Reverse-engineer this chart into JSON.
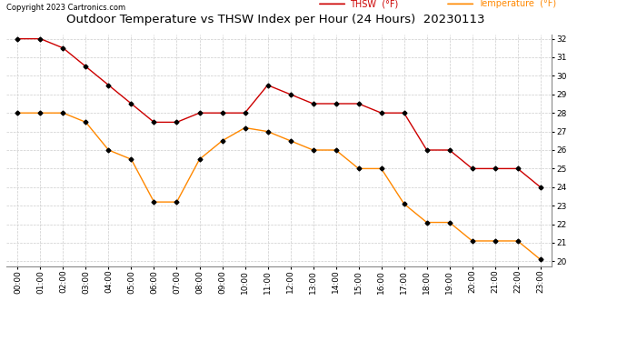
{
  "title": "Outdoor Temperature vs THSW Index per Hour (24 Hours)  20230113",
  "copyright": "Copyright 2023 Cartronics.com",
  "legend_thsw": "THSW  (°F)",
  "legend_temp": "Temperature  (°F)",
  "hours": [
    "00:00",
    "01:00",
    "02:00",
    "03:00",
    "04:00",
    "05:00",
    "06:00",
    "07:00",
    "08:00",
    "09:00",
    "10:00",
    "11:00",
    "12:00",
    "13:00",
    "14:00",
    "15:00",
    "16:00",
    "17:00",
    "18:00",
    "19:00",
    "20:00",
    "21:00",
    "22:00",
    "23:00"
  ],
  "thsw": [
    32.0,
    32.0,
    31.5,
    30.5,
    29.5,
    28.5,
    27.5,
    27.5,
    28.0,
    28.0,
    28.0,
    29.5,
    29.0,
    28.5,
    28.5,
    28.5,
    28.0,
    28.0,
    26.0,
    26.0,
    25.0,
    25.0,
    25.0,
    24.0
  ],
  "temperature": [
    28.0,
    28.0,
    28.0,
    27.5,
    26.0,
    25.5,
    23.2,
    23.2,
    25.5,
    26.5,
    27.2,
    27.0,
    26.5,
    26.0,
    26.0,
    25.0,
    25.0,
    23.1,
    22.1,
    22.1,
    21.1,
    21.1,
    21.1,
    20.1
  ],
  "thsw_color": "#cc0000",
  "temp_color": "#ff8800",
  "marker": "D",
  "marker_color": "#000000",
  "marker_size": 2.5,
  "ylim_min": 19.75,
  "ylim_max": 32.25,
  "yticks": [
    20.0,
    21.0,
    22.0,
    23.0,
    24.0,
    25.0,
    26.0,
    27.0,
    28.0,
    29.0,
    30.0,
    31.0,
    32.0
  ],
  "bg_color": "#ffffff",
  "grid_color": "#cccccc",
  "title_fontsize": 9.5,
  "copyright_fontsize": 6,
  "legend_fontsize": 7,
  "tick_fontsize": 6.5
}
